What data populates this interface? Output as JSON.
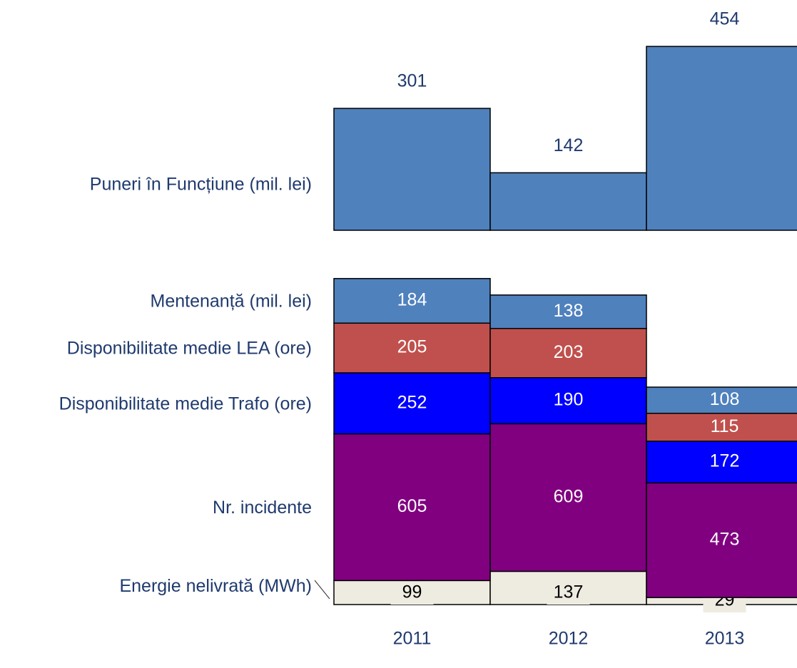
{
  "chart_data": [
    {
      "type": "bar",
      "series": [
        {
          "name": "Puneri în Funcțiune (mil. lei)",
          "color": "#4f81bd",
          "values": [
            301,
            142,
            454
          ]
        }
      ]
    },
    {
      "type": "stacked_bar",
      "categories": [
        "2011",
        "2012",
        "2013"
      ],
      "series": [
        {
          "name": "Energie nelivrată (MWh)",
          "color": "#eeece1",
          "values": [
            99,
            137,
            29
          ]
        },
        {
          "name": "Nr. incidente",
          "color": "#800080",
          "values": [
            605,
            609,
            473
          ]
        },
        {
          "name": "Disponibilitate medie Trafo (ore)",
          "color": "#0000ff",
          "values": [
            252,
            190,
            172
          ]
        },
        {
          "name": "Disponibilitate medie LEA (ore)",
          "color": "#c0504d",
          "values": [
            205,
            203,
            115
          ]
        },
        {
          "name": "Mentenanță (mil. lei)",
          "color": "#4f81bd",
          "values": [
            184,
            138,
            108
          ]
        }
      ]
    }
  ]
}
